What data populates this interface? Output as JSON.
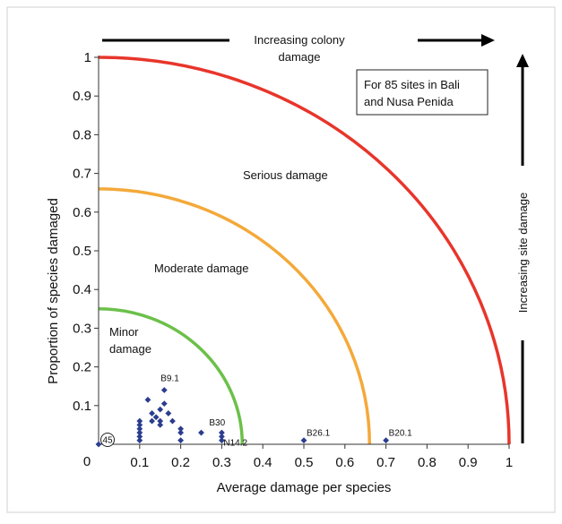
{
  "chart_data": {
    "type": "scatter",
    "title": "",
    "xlabel": "Average damage per species",
    "ylabel": "Proportion of species damaged",
    "xlim": [
      0,
      1
    ],
    "ylim": [
      0,
      1
    ],
    "x_ticks": [
      "0.1",
      "0.2",
      "0.3",
      "0.4",
      "0.5",
      "0.6",
      "0.7",
      "0.8",
      "0.9",
      "1"
    ],
    "y_ticks": [
      "0.1",
      "0.2",
      "0.3",
      "0.4",
      "0.5",
      "0.6",
      "0.7",
      "0.8",
      "0.9",
      "1"
    ],
    "origin_label": "0",
    "grid": false,
    "note_lines": [
      "For 85 sites in Bali",
      "and Nusa Penida"
    ],
    "top_arrow_label_lines": [
      "Increasing colony",
      "damage"
    ],
    "right_arrow_label": "Increasing site damage",
    "thresholds": [
      {
        "radius": 0.35,
        "color": "#6cc04a",
        "label_lines": [
          "Minor",
          "damage"
        ]
      },
      {
        "radius": 0.66,
        "color": "#f4a93a",
        "label_lines": [
          "Moderate damage"
        ]
      },
      {
        "radius": 1.0,
        "color": "#e8352b",
        "label_lines": [
          "Serious damage"
        ]
      }
    ],
    "point_color": "#2b3d8f",
    "points": [
      {
        "x": 0.1,
        "y": 0.06
      },
      {
        "x": 0.1,
        "y": 0.05
      },
      {
        "x": 0.1,
        "y": 0.04
      },
      {
        "x": 0.1,
        "y": 0.03
      },
      {
        "x": 0.1,
        "y": 0.02
      },
      {
        "x": 0.1,
        "y": 0.01
      },
      {
        "x": 0.12,
        "y": 0.115
      },
      {
        "x": 0.13,
        "y": 0.08
      },
      {
        "x": 0.13,
        "y": 0.06
      },
      {
        "x": 0.14,
        "y": 0.07
      },
      {
        "x": 0.15,
        "y": 0.09
      },
      {
        "x": 0.15,
        "y": 0.06
      },
      {
        "x": 0.15,
        "y": 0.05
      },
      {
        "x": 0.16,
        "y": 0.14
      },
      {
        "x": 0.16,
        "y": 0.105
      },
      {
        "x": 0.17,
        "y": 0.08
      },
      {
        "x": 0.18,
        "y": 0.06
      },
      {
        "x": 0.2,
        "y": 0.04
      },
      {
        "x": 0.2,
        "y": 0.03
      },
      {
        "x": 0.2,
        "y": 0.01
      },
      {
        "x": 0.25,
        "y": 0.03
      },
      {
        "x": 0.3,
        "y": 0.03
      },
      {
        "x": 0.3,
        "y": 0.02
      },
      {
        "x": 0.3,
        "y": 0.01
      },
      {
        "x": 0.5,
        "y": 0.01
      },
      {
        "x": 0.7,
        "y": 0.01
      }
    ],
    "origin_cluster": {
      "x": 0,
      "y": 0,
      "count_label": "45"
    },
    "point_labels": [
      {
        "text": "B9.1",
        "x": 0.16,
        "y": 0.14
      },
      {
        "text": "B30",
        "x": 0.3,
        "y": 0.03
      },
      {
        "text": "N14.2",
        "x": 0.3,
        "y": 0.01
      },
      {
        "text": "B26.1",
        "x": 0.5,
        "y": 0.01
      },
      {
        "text": "B20.1",
        "x": 0.7,
        "y": 0.01
      }
    ]
  }
}
